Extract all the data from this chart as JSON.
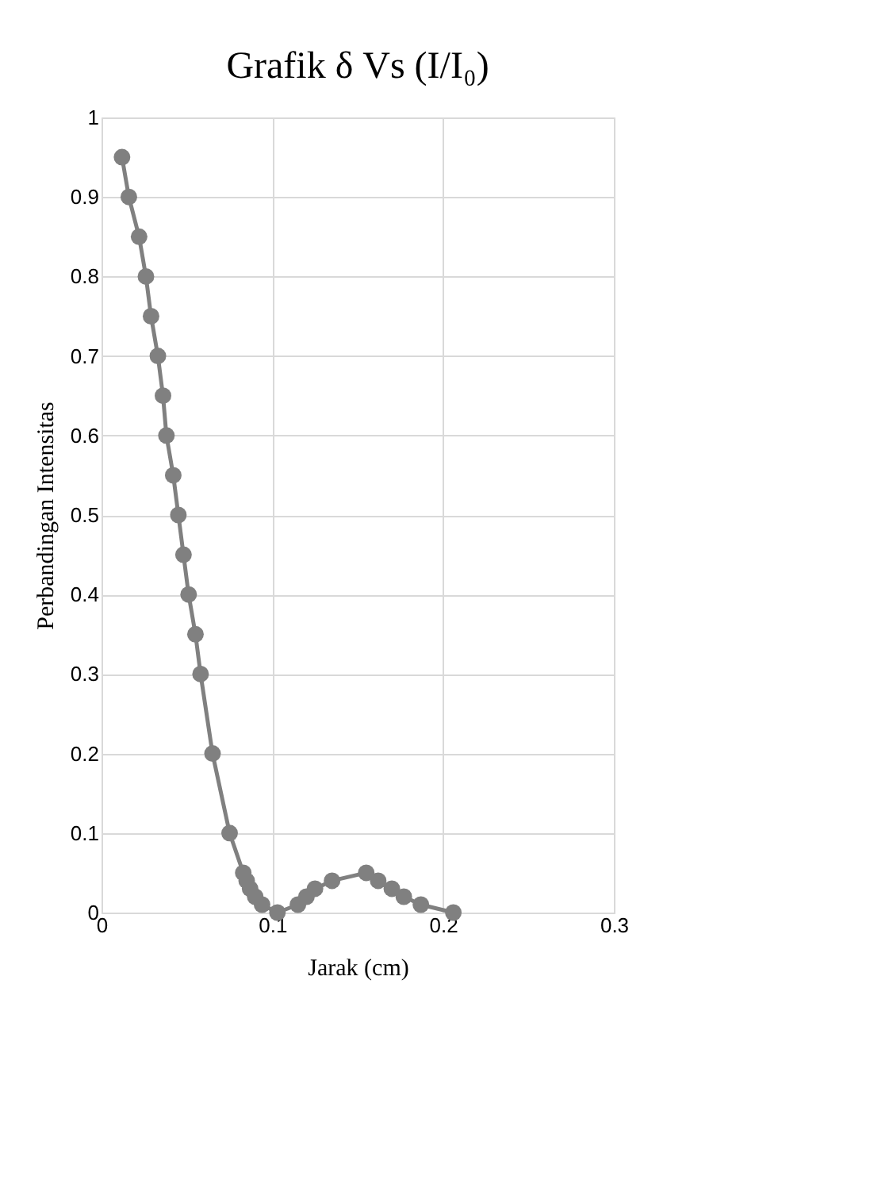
{
  "chart_data": {
    "type": "line",
    "title": "Grafik δ Vs (I/I₀)",
    "xlabel": "Jarak (cm)",
    "ylabel": "Perbandingan Intensitas",
    "x": [
      0.012,
      0.016,
      0.022,
      0.026,
      0.029,
      0.033,
      0.036,
      0.038,
      0.042,
      0.045,
      0.048,
      0.051,
      0.055,
      0.058,
      0.065,
      0.075,
      0.083,
      0.085,
      0.087,
      0.09,
      0.094,
      0.103,
      0.115,
      0.12,
      0.125,
      0.135,
      0.155,
      0.162,
      0.17,
      0.177,
      0.187,
      0.206
    ],
    "series": [
      {
        "color": "#808080",
        "values": [
          0.95,
          0.9,
          0.85,
          0.8,
          0.75,
          0.7,
          0.65,
          0.6,
          0.55,
          0.5,
          0.45,
          0.4,
          0.35,
          0.3,
          0.2,
          0.1,
          0.05,
          0.04,
          0.03,
          0.02,
          0.01,
          0,
          0.01,
          0.02,
          0.03,
          0.04,
          0.05,
          0.04,
          0.03,
          0.02,
          0.01,
          0
        ]
      }
    ],
    "xlim": [
      0,
      0.3
    ],
    "xticks": [
      0,
      0.1,
      0.2,
      0.3
    ],
    "ylim": [
      0,
      1
    ],
    "yticks": [
      0,
      0.1,
      0.2,
      0.3,
      0.4,
      0.5,
      0.6,
      0.7,
      0.8,
      0.9,
      1
    ],
    "grid": true,
    "marker": "circle",
    "line_style": "solid"
  }
}
